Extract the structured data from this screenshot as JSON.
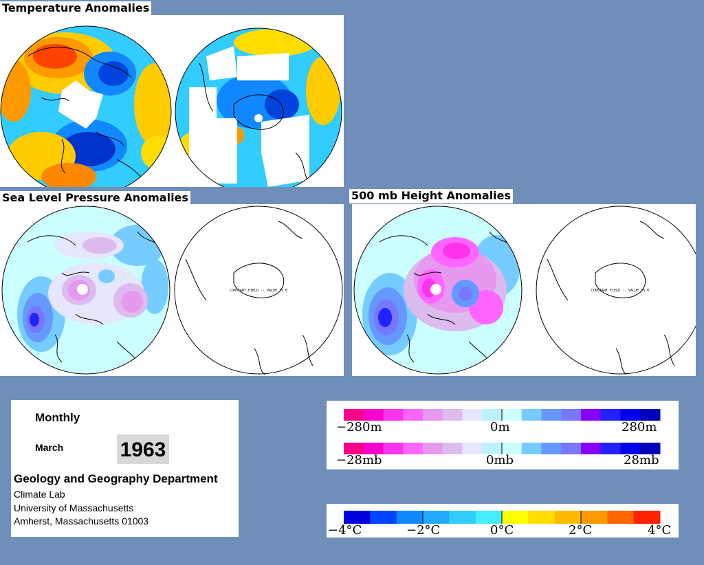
{
  "titles": {
    "temperature": "Temperature Anomalies",
    "slp": "Sea Level Pressure Anomalies",
    "height500": "500 mb Height Anomalies"
  },
  "map_annotation": "CONSTANT FIELD -- VALUE IS 0",
  "info": {
    "period": "Monthly",
    "month": "March",
    "year": "1963",
    "department": "Geology and Geography Department",
    "lines": [
      "Climate Lab",
      "University of Massachusetts",
      "Amherst, Massachusetts 01003"
    ]
  },
  "legends": {
    "height": {
      "labels": [
        "−280m",
        "0m",
        "280m"
      ],
      "colors": [
        "#ff0088",
        "#ff00cc",
        "#ff33ee",
        "#ff66ff",
        "#e699ee",
        "#ddbbee",
        "#e6e6ff",
        "#bbf2ff",
        "#ccffff",
        "#77ccff",
        "#6699ff",
        "#7777ff",
        "#8800ff",
        "#2222ff",
        "#0000ee",
        "#0000bb"
      ]
    },
    "pressure": {
      "labels": [
        "−28mb",
        "0mb",
        "28mb"
      ],
      "colors": [
        "#ff0088",
        "#ff00cc",
        "#ff33ee",
        "#ff66ff",
        "#e699ee",
        "#ddbbee",
        "#e6e6ff",
        "#bbf2ff",
        "#ccffff",
        "#77ccff",
        "#6699ff",
        "#7777ff",
        "#8800ff",
        "#2222ff",
        "#0000ee",
        "#0000bb"
      ]
    },
    "temperature": {
      "labels": [
        "−4°C",
        "−2°C",
        "0°C",
        "2°C",
        "4°C"
      ],
      "colors": [
        "#0000dd",
        "#0044ff",
        "#1188ff",
        "#22aaff",
        "#33ccff",
        "#44eeff",
        "#ffff00",
        "#ffdd00",
        "#ffbb00",
        "#ff9900",
        "#ff6600",
        "#ff2200"
      ]
    }
  },
  "colors": {
    "background": "#6f8fb9",
    "land_outline": "#000000",
    "missing_data": "#ffffff"
  }
}
